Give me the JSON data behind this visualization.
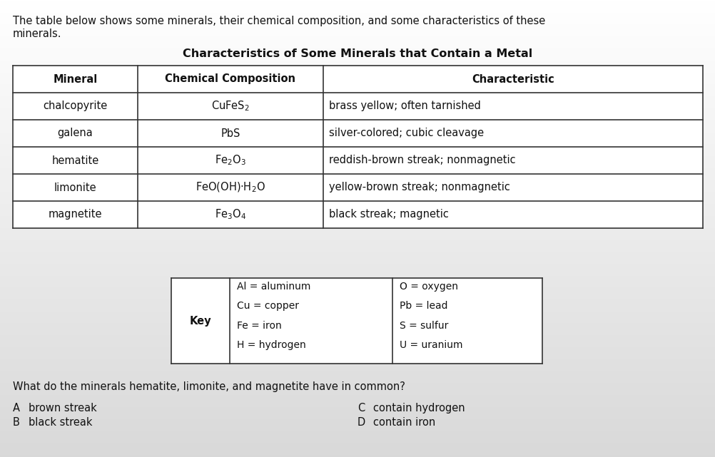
{
  "intro_text_line1": "The table below shows some minerals, their chemical composition, and some characteristics of these",
  "intro_text_line2": "minerals.",
  "table_title": "Characteristics of Some Minerals that Contain a Metal",
  "table_headers": [
    "Mineral",
    "Chemical Composition",
    "Characteristic"
  ],
  "table_rows": [
    [
      "chalcopyrite",
      "CuFeS$_2$",
      "brass yellow; often tarnished"
    ],
    [
      "galena",
      "PbS",
      "silver-colored; cubic cleavage"
    ],
    [
      "hematite",
      "Fe$_2$O$_3$",
      "reddish-brown streak; nonmagnetic"
    ],
    [
      "limonite",
      "FeO(OH)·H$_2$O",
      "yellow-brown streak; nonmagnetic"
    ],
    [
      "magnetite",
      "Fe$_3$O$_4$",
      "black streak; magnetic"
    ]
  ],
  "key_label": "Key",
  "key_left": [
    "Al = aluminum",
    "Cu = copper",
    "Fe = iron",
    "H = hydrogen"
  ],
  "key_right": [
    "O = oxygen",
    "Pb = lead",
    "S = sulfur",
    "U = uranium"
  ],
  "question": "What do the minerals hematite, limonite, and magnetite have in common?",
  "ans_letters": [
    "A",
    "B",
    "C",
    "D"
  ],
  "ans_texts": [
    "brown streak",
    "black streak",
    "contain hydrogen",
    "contain iron"
  ],
  "bg_color_top": "#ffffff",
  "bg_color_bottom": "#d8d8d8",
  "line_color": "#333333",
  "text_color": "#111111",
  "font_size": 10.5,
  "title_font_size": 11.5,
  "intro_font_size": 10.5,
  "q_font_size": 10.5
}
